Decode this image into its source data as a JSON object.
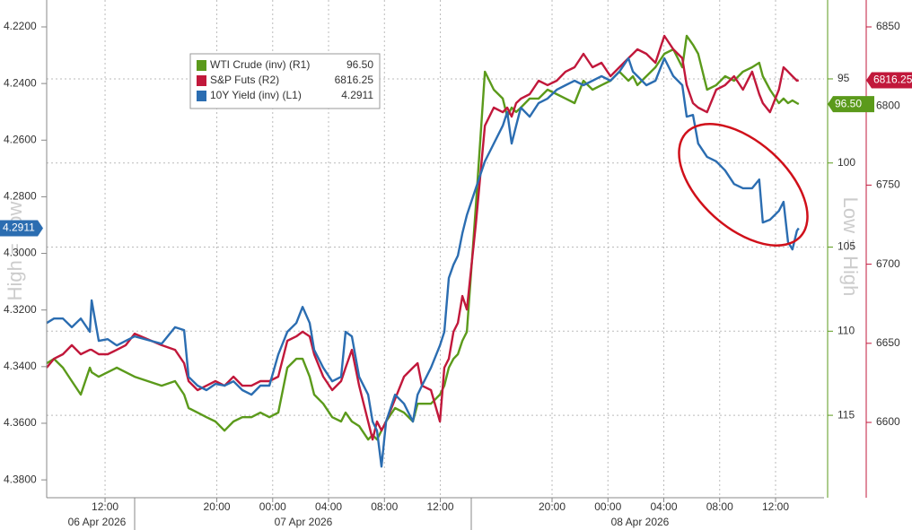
{
  "chart_data": {
    "type": "line",
    "x": [
      7.82,
      8.34,
      8.98,
      9.62,
      10.26,
      10.91,
      11.04,
      11.55,
      12.19,
      12.84,
      13.48,
      14.12,
      16.05,
      17.01,
      17.66,
      17.98,
      18.62,
      19.26,
      19.9,
      20.55,
      21.19,
      21.83,
      22.48,
      23.12,
      23.76,
      24.4,
      25.05,
      25.69,
      26.14,
      26.65,
      26.97,
      27.62,
      28.26,
      28.9,
      29.22,
      29.67,
      30.19,
      30.83,
      31.15,
      31.47,
      31.79,
      32.12,
      32.76,
      33.4,
      34.04,
      34.37,
      34.69,
      35.33,
      35.97,
      36.29,
      36.61,
      36.94,
      37.26,
      37.58,
      37.9,
      38.54,
      39.19,
      39.83,
      40.47,
      40.79,
      41.11,
      41.43,
      41.76,
      42.4,
      43.04,
      43.68,
      44.33,
      44.97,
      45.61,
      46.25,
      46.9,
      47.54,
      48.18,
      48.82,
      49.47,
      49.79,
      50.11,
      50.75,
      51.4,
      52.04,
      52.68,
      53.32,
      53.64,
      54.09,
      54.46,
      55.1,
      55.75,
      56.39,
      57.03,
      57.67,
      58.32,
      58.83,
      59.09,
      59.6,
      60.24,
      60.57,
      60.89,
      61.21,
      61.53,
      61.66
    ],
    "xlim": [
      7.82,
      63.47
    ],
    "xticks": [
      {
        "value": 12,
        "label": "12:00"
      },
      {
        "value": 20,
        "label": "20:00"
      },
      {
        "value": 24,
        "label": "00:00"
      },
      {
        "value": 28,
        "label": "04:00"
      },
      {
        "value": 32,
        "label": "08:00"
      },
      {
        "value": 36,
        "label": "12:00"
      },
      {
        "value": 44,
        "label": "20:00"
      },
      {
        "value": 48,
        "label": "00:00"
      },
      {
        "value": 52,
        "label": "04:00"
      },
      {
        "value": 56,
        "label": "08:00"
      },
      {
        "value": 60,
        "label": "12:00"
      }
    ],
    "x_dates": [
      "06 Apr 2026",
      "07 Apr 2026",
      "08 Apr 2026"
    ],
    "ylim": [
      4.3863,
      4.2105
    ],
    "yticks": [
      {
        "value": 4.22,
        "label": "4.2200"
      },
      {
        "value": 4.24,
        "label": "4.2400"
      },
      {
        "value": 4.26,
        "label": "4.2600"
      },
      {
        "value": 4.28,
        "label": "4.2800"
      },
      {
        "value": 4.3,
        "label": "4.3000"
      },
      {
        "value": 4.32,
        "label": "4.3200"
      },
      {
        "value": 4.34,
        "label": "4.3400"
      },
      {
        "value": 4.36,
        "label": "4.3600"
      },
      {
        "value": 4.38,
        "label": "4.3800"
      }
    ],
    "y2lim": [
      119.9,
      90.31
    ],
    "y2ticks": [
      95,
      100,
      105,
      110,
      115
    ],
    "y3lim": [
      6552.4,
      6867
    ],
    "y3ticks": [
      6850,
      6800,
      6750,
      6700,
      6650,
      6600
    ],
    "ylabel": "High = Low",
    "y2label": "Low = High",
    "grid": true,
    "series": [
      {
        "name": "WTI Crude (inv) (R1)",
        "color": "#5b9a1b",
        "axis": "y2",
        "last_value_label": "96.50",
        "values": [
          111.91,
          111.64,
          112.17,
          112.97,
          113.77,
          112.17,
          112.44,
          112.71,
          112.44,
          112.17,
          112.44,
          112.71,
          113.24,
          112.97,
          113.77,
          114.57,
          114.84,
          115.11,
          115.37,
          115.91,
          115.37,
          115.11,
          115.11,
          114.84,
          115.11,
          114.84,
          112.17,
          111.64,
          111.64,
          112.71,
          113.77,
          114.31,
          115.11,
          115.37,
          114.84,
          115.37,
          115.64,
          116.44,
          116.17,
          116.44,
          115.91,
          115.37,
          114.57,
          114.84,
          115.37,
          114.31,
          114.31,
          114.31,
          113.77,
          113.24,
          112.17,
          111.64,
          111.37,
          110.57,
          110.04,
          102.57,
          94.57,
          95.64,
          96.17,
          97.24,
          96.71,
          96.97,
          96.71,
          96.17,
          96.17,
          95.64,
          95.91,
          96.17,
          96.44,
          95.11,
          95.64,
          95.37,
          95.11,
          94.57,
          95.11,
          94.84,
          95.37,
          94.84,
          94.31,
          93.51,
          93.24,
          94.31,
          92.44,
          92.97,
          93.51,
          95.64,
          95.37,
          94.84,
          95.11,
          94.57,
          94.31,
          94.04,
          94.84,
          95.64,
          96.44,
          96.17,
          96.44,
          96.28,
          96.44,
          96.5
        ]
      },
      {
        "name": "S&P Futs (R2)",
        "color": "#c1183b",
        "axis": "y3",
        "last_value_label": "6816.25",
        "values": [
          6634.6,
          6640.2,
          6643.1,
          6648.8,
          6643.1,
          6645.9,
          6645.9,
          6643.1,
          6643.1,
          6645.9,
          6648.8,
          6656.1,
          6648.8,
          6645.9,
          6637.4,
          6626.1,
          6620.4,
          6623.2,
          6626.1,
          6623.2,
          6628.9,
          6623.2,
          6623.2,
          6626.1,
          6626.1,
          6628.9,
          6651.6,
          6654.4,
          6657.3,
          6654.4,
          6643.1,
          6628.9,
          6620.4,
          6626.1,
          6634.6,
          6645.9,
          6623.2,
          6600.6,
          6589.2,
          6600.6,
          6594.9,
          6600.6,
          6614.7,
          6628.9,
          6634.6,
          6637.4,
          6623.2,
          6620.4,
          6600.6,
          6634.6,
          6640.2,
          6657.3,
          6662.9,
          6679.9,
          6671.4,
          6725.3,
          6787.6,
          6799.0,
          6796.1,
          6799.0,
          6793.3,
          6801.8,
          6804.6,
          6807.5,
          6816.0,
          6813.2,
          6816.0,
          6821.7,
          6824.5,
          6833.0,
          6824.5,
          6827.3,
          6818.8,
          6824.5,
          6830.2,
          6833.0,
          6835.8,
          6833.0,
          6827.3,
          6844.3,
          6835.8,
          6830.2,
          6813.2,
          6801.8,
          6799.0,
          6796.1,
          6810.3,
          6813.2,
          6818.8,
          6810.3,
          6821.7,
          6807.5,
          6801.8,
          6796.1,
          6810.3,
          6824.5,
          6821.7,
          6818.8,
          6816.0,
          6816.25
        ]
      },
      {
        "name": "10Y Yield (inv) (L1)",
        "color": "#2b6db1",
        "axis": "y",
        "last_value_label": "4.2911",
        "values": [
          4.3246,
          4.323,
          4.323,
          4.3261,
          4.323,
          4.3277,
          4.3166,
          4.3309,
          4.3303,
          4.3325,
          4.3309,
          4.3293,
          4.3319,
          4.3261,
          4.3271,
          4.3436,
          4.3467,
          4.3483,
          4.3461,
          4.3467,
          4.3452,
          4.3483,
          4.3499,
          4.3467,
          4.3467,
          4.3357,
          4.3277,
          4.3246,
          4.3189,
          4.3246,
          4.3341,
          4.3404,
          4.3452,
          4.3436,
          4.3277,
          4.3293,
          4.3436,
          4.3499,
          4.3594,
          4.3626,
          4.3753,
          4.3594,
          4.3499,
          4.3531,
          4.3594,
          4.3499,
          4.3467,
          4.3404,
          4.3325,
          4.3277,
          4.3087,
          4.304,
          4.3008,
          4.2929,
          4.2865,
          4.277,
          4.2675,
          4.2612,
          4.2549,
          4.2501,
          4.2612,
          4.2549,
          4.2485,
          4.2517,
          4.2469,
          4.2453,
          4.2422,
          4.2406,
          4.239,
          4.2406,
          4.239,
          4.2374,
          4.239,
          4.2358,
          4.2311,
          4.2358,
          4.2374,
          4.2406,
          4.239,
          4.2311,
          4.2374,
          4.2406,
          4.2517,
          4.2511,
          4.2612,
          4.2659,
          4.2675,
          4.2707,
          4.2755,
          4.277,
          4.277,
          4.2739,
          4.2891,
          4.2881,
          4.285,
          4.2818,
          4.296,
          4.2986,
          4.292,
          4.2911
        ]
      }
    ]
  }
}
